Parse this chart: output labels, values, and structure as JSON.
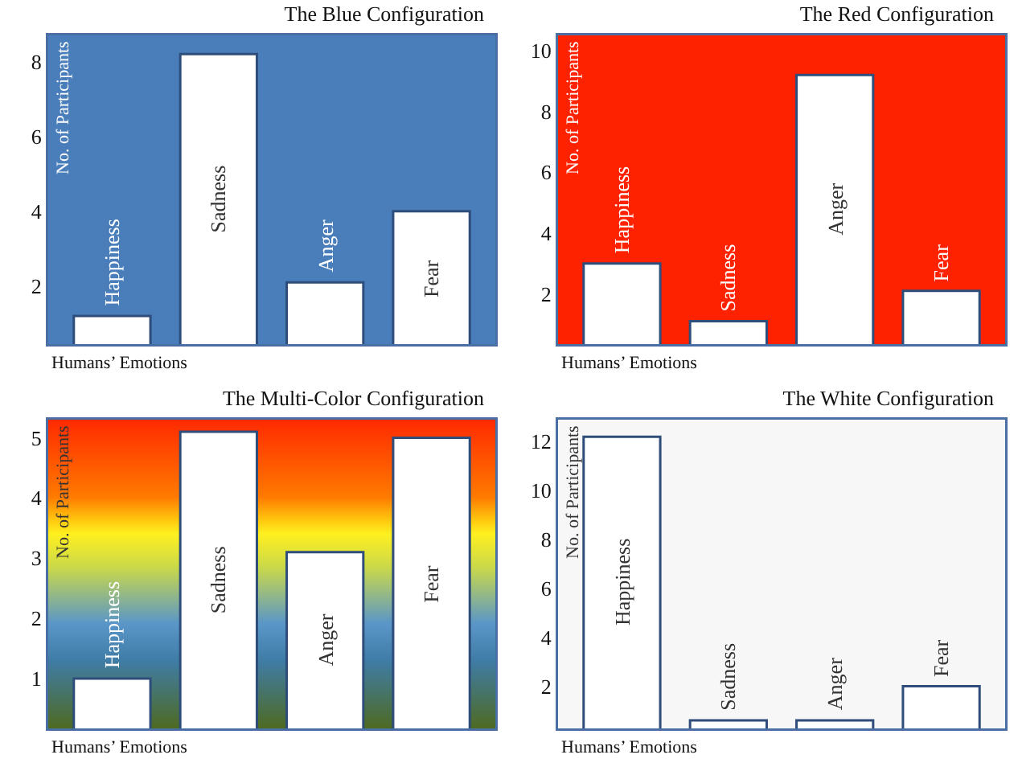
{
  "chart_data": [
    {
      "type": "bar",
      "title": "The Blue Configuration",
      "xlabel": "Humans’ Emotions",
      "ylabel": "No. of Participants",
      "categories": [
        "Happiness",
        "Sadness",
        "Anger",
        "Fear"
      ],
      "values": [
        1.2,
        8.2,
        2.1,
        4
      ],
      "color": "#ffffff",
      "ylim": [
        0.45,
        8.7
      ],
      "yticks": [
        2,
        4,
        6,
        8
      ]
    },
    {
      "type": "bar",
      "title": "The Red Configuration",
      "xlabel": "Humans’ Emotions",
      "ylabel": "No. of Participants",
      "categories": [
        "Happiness",
        "Sadness",
        "Anger",
        "Fear"
      ],
      "values": [
        3,
        1.1,
        9.2,
        2.1
      ],
      "color": "#ffffff",
      "ylim": [
        0.35,
        10.5
      ],
      "yticks": [
        2,
        4,
        6,
        8,
        10
      ]
    },
    {
      "type": "bar",
      "title": "The Multi-Color Configuration",
      "xlabel": "Humans’ Emotions",
      "ylabel": "No. of Participants",
      "categories": [
        "Happiness",
        "Sadness",
        "Anger",
        "Fear"
      ],
      "values": [
        1,
        5.1,
        3.1,
        5
      ],
      "color": "#ffffff",
      "ylim": [
        0.17,
        5.3
      ],
      "yticks": [
        1,
        2,
        3,
        4,
        5
      ]
    },
    {
      "type": "bar",
      "title": "The White Configuration",
      "xlabel": "Humans’ Emotions",
      "ylabel": "No. of Participants",
      "categories": [
        "Happiness",
        "Sadness",
        "Anger",
        "Fear"
      ],
      "values": [
        12.2,
        0.6,
        0.6,
        2
      ],
      "color": "#ffffff",
      "ylim": [
        0.27,
        12.9
      ],
      "yticks": [
        2,
        4,
        6,
        8,
        10,
        12
      ]
    }
  ]
}
